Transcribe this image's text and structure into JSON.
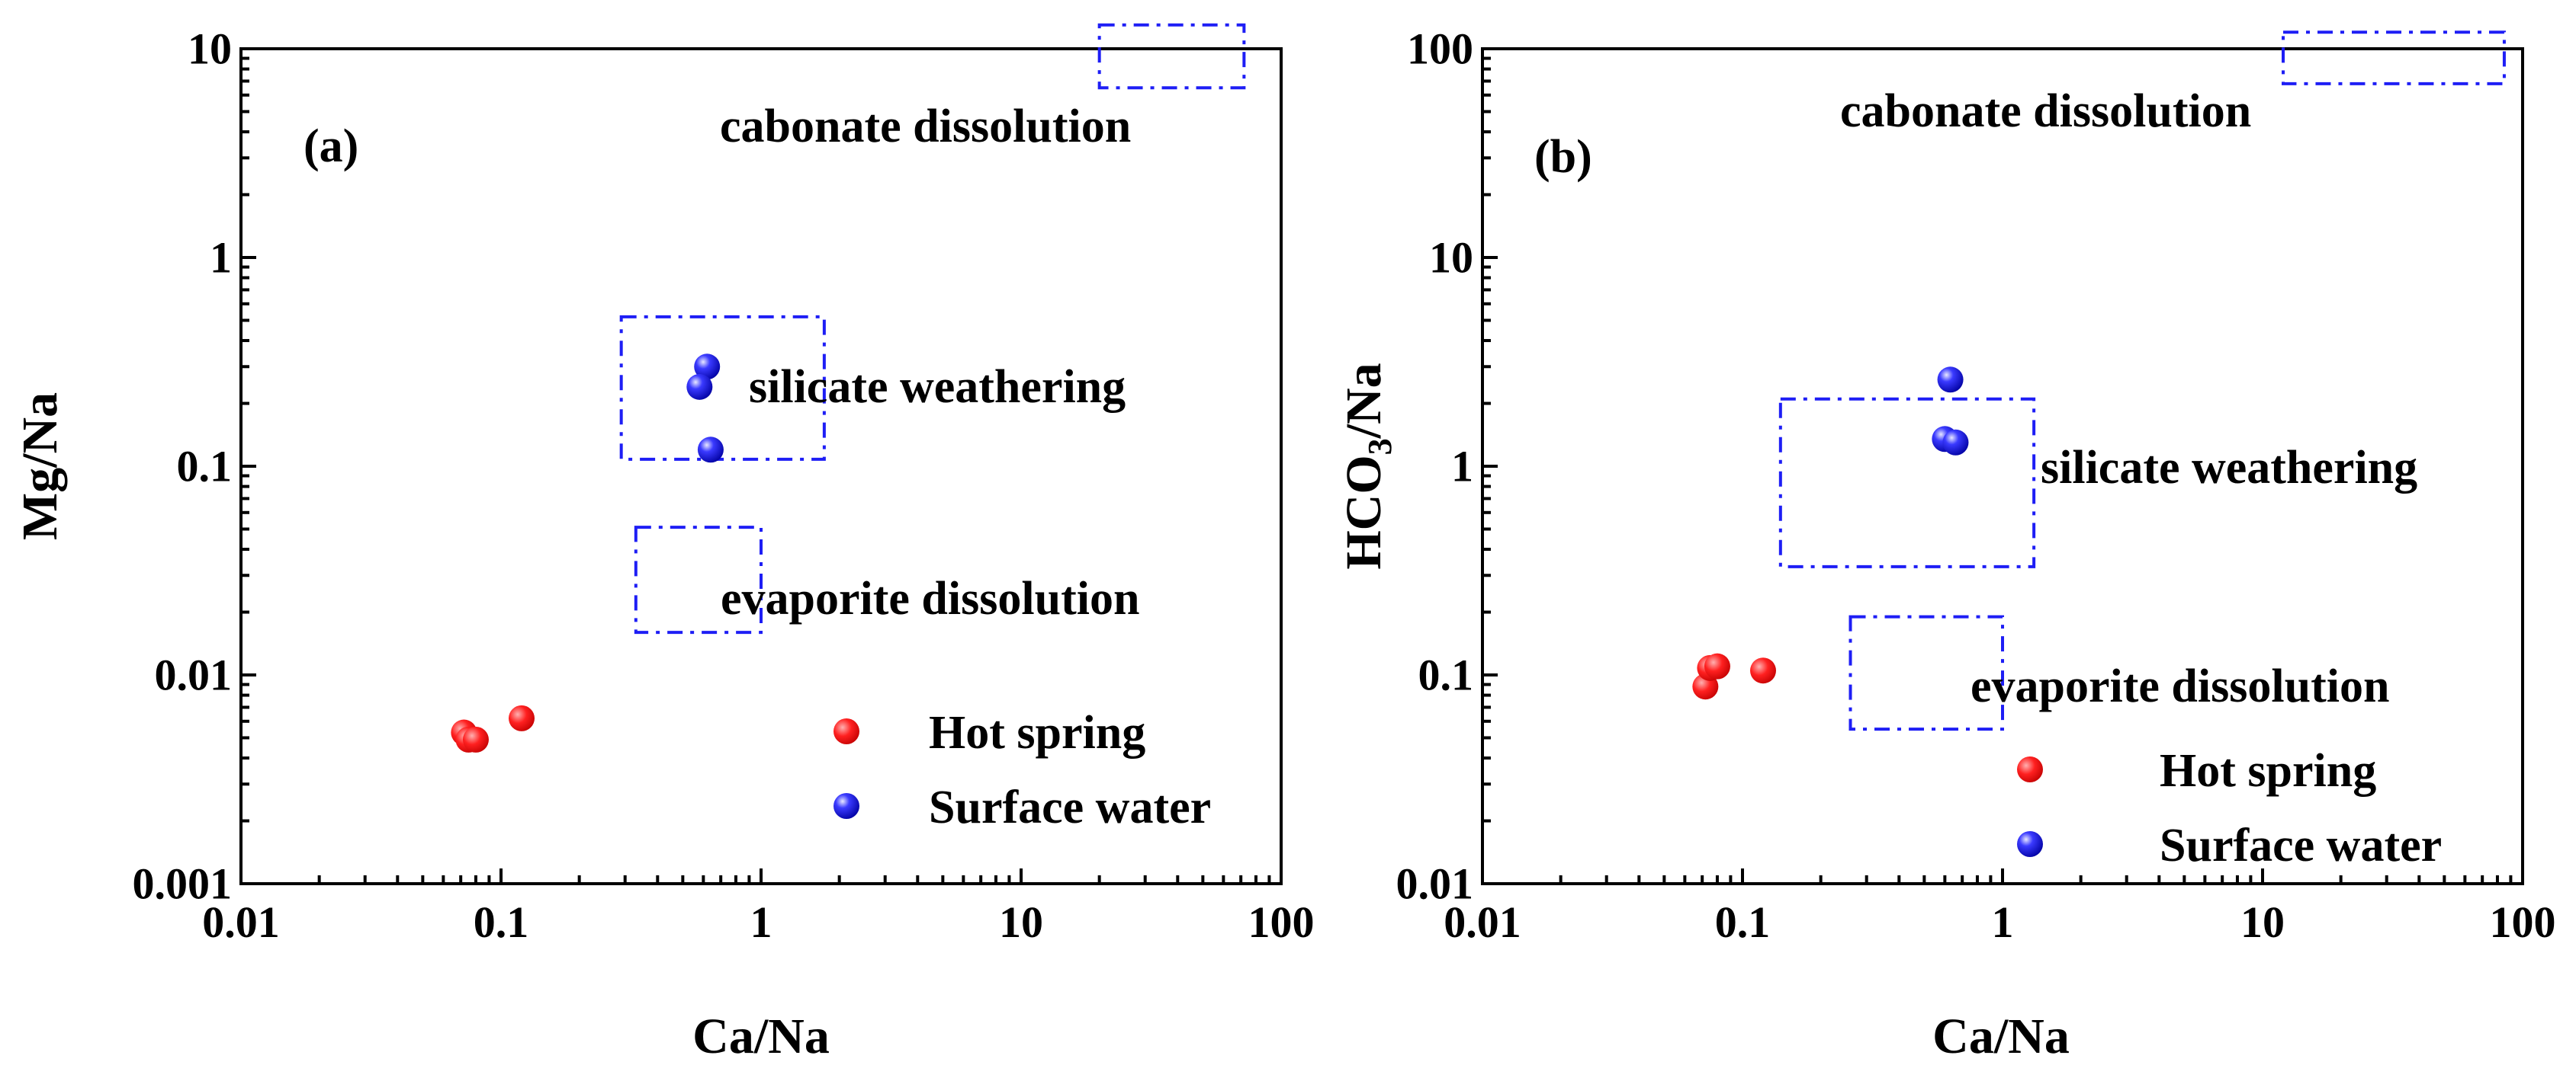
{
  "colors": {
    "hot_spring": "#ff1a1a",
    "surface_water": "#1a1aff",
    "region_box": "#1e1ef5",
    "axis": "#000000"
  },
  "legend": {
    "hot_spring": "Hot spring",
    "surface_water": "Surface water"
  },
  "chart_data": [
    {
      "type": "scatter",
      "panel_label": "(a)",
      "xlabel": "Ca/Na",
      "ylabel": "Mg/Na",
      "xscale": "log",
      "yscale": "log",
      "xlim": [
        0.01,
        100
      ],
      "ylim": [
        0.001,
        10
      ],
      "xticks": [
        0.01,
        0.1,
        1,
        10,
        100
      ],
      "xtick_labels": [
        "0.01",
        "0.1",
        "1",
        "10",
        "100"
      ],
      "yticks": [
        0.001,
        0.01,
        0.1,
        1,
        10
      ],
      "ytick_labels": [
        "0.001",
        "0.01",
        "0.1",
        "1",
        "10"
      ],
      "legend_position": "bottom-right",
      "series": [
        {
          "name": "Hot spring",
          "points": [
            [
              0.072,
              0.0053
            ],
            [
              0.075,
              0.0049
            ],
            [
              0.08,
              0.0049
            ],
            [
              0.12,
              0.0062
            ]
          ]
        },
        {
          "name": "Surface water",
          "points": [
            [
              0.62,
              0.3
            ],
            [
              0.58,
              0.24
            ],
            [
              0.64,
              0.12
            ]
          ]
        }
      ],
      "regions": [
        {
          "name": "carbonate-dissolution",
          "label": "cabonate dissolution",
          "x": [
            20,
            72
          ],
          "y": [
            6.5,
            13
          ]
        },
        {
          "name": "silicate-weathering",
          "label": "silicate weathering",
          "x": [
            0.29,
            1.75
          ],
          "y": [
            0.108,
            0.52
          ]
        },
        {
          "name": "evaporite-dissolution",
          "label": "evaporite dissolution",
          "x": [
            0.33,
            1.0
          ],
          "y": [
            0.016,
            0.051
          ]
        }
      ]
    },
    {
      "type": "scatter",
      "panel_label": "(b)",
      "xlabel": "Ca/Na",
      "ylabel_main": "HCO",
      "ylabel_sub": "3",
      "ylabel_tail": "/Na",
      "xscale": "log",
      "yscale": "log",
      "xlim": [
        0.01,
        100
      ],
      "ylim": [
        0.01,
        100
      ],
      "xticks": [
        0.01,
        0.1,
        1,
        10,
        100
      ],
      "xtick_labels": [
        "0.01",
        "0.1",
        "1",
        "10",
        "100"
      ],
      "yticks": [
        0.01,
        0.1,
        1,
        10,
        100
      ],
      "ytick_labels": [
        "0.01",
        "0.1",
        "1",
        "10",
        "100"
      ],
      "legend_position": "bottom-right",
      "series": [
        {
          "name": "Hot spring",
          "points": [
            [
              0.072,
              0.088
            ],
            [
              0.075,
              0.108
            ],
            [
              0.08,
              0.11
            ],
            [
              0.12,
              0.105
            ]
          ]
        },
        {
          "name": "Surface water",
          "points": [
            [
              0.63,
              2.6
            ],
            [
              0.6,
              1.35
            ],
            [
              0.66,
              1.3
            ]
          ]
        }
      ],
      "regions": [
        {
          "name": "carbonate-dissolution",
          "label": "cabonate dissolution",
          "x": [
            12,
            85
          ],
          "y": [
            68,
            120
          ]
        },
        {
          "name": "silicate-weathering",
          "label": "silicate weathering",
          "x": [
            0.14,
            1.32
          ],
          "y": [
            0.33,
            2.1
          ]
        },
        {
          "name": "evaporite-dissolution",
          "label": "evaporite dissolution",
          "x": [
            0.26,
            1.0
          ],
          "y": [
            0.055,
            0.19
          ]
        }
      ]
    }
  ]
}
